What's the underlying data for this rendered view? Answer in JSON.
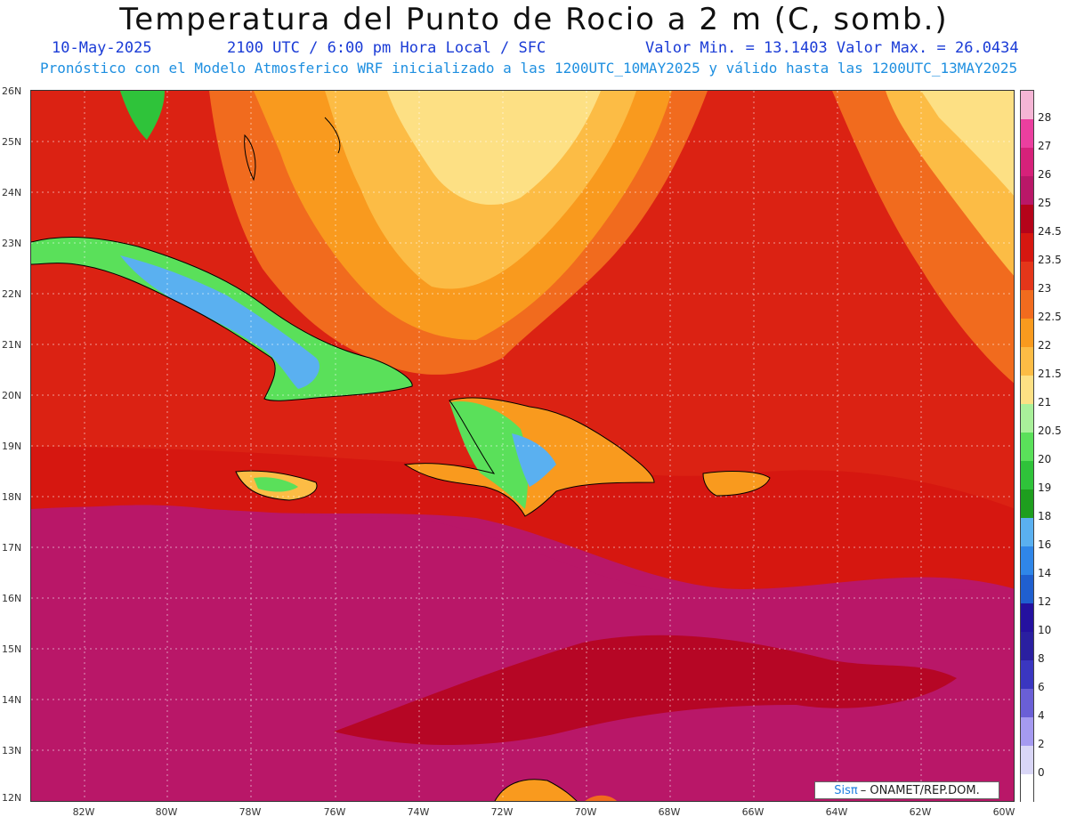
{
  "header": {
    "title": "Temperatura del Punto de Rocio a 2 m (C, somb.)",
    "date": "10-May-2025",
    "time": "2100 UTC / 6:00 pm Hora Local / SFC",
    "minmax": "Valor Min. = 13.1403  Valor Max. = 26.0434",
    "forecast": "Pronóstico con el Modelo Atmosferico WRF inicializado a las 1200UTC_10MAY2025 y válido hasta las  1200UTC_13MAY2025"
  },
  "axes": {
    "lat_labels": [
      "26N",
      "25N",
      "24N",
      "23N",
      "22N",
      "21N",
      "20N",
      "19N",
      "18N",
      "17N",
      "16N",
      "15N",
      "14N",
      "13N",
      "12N"
    ],
    "lon_labels": [
      "82W",
      "80W",
      "78W",
      "76W",
      "74W",
      "72W",
      "70W",
      "68W",
      "66W",
      "64W",
      "62W",
      "60W"
    ]
  },
  "colorbar": {
    "labels": [
      "28",
      "27",
      "26",
      "25",
      "24.5",
      "23.5",
      "23",
      "22.5",
      "22",
      "21.5",
      "21",
      "20.5",
      "20",
      "19",
      "18",
      "16",
      "14",
      "12",
      "10",
      "8",
      "6",
      "4",
      "2",
      "0"
    ],
    "colors": [
      "#f5b5d5",
      "#eb3f9f",
      "#d6217a",
      "#b91768",
      "#b5031a",
      "#d61710",
      "#e4361a",
      "#f16b1e",
      "#f99a1e",
      "#fcbc45",
      "#fde084",
      "#a9f09a",
      "#5ae05a",
      "#2fc33a",
      "#1e9e1e",
      "#5ab0f0",
      "#2f86e8",
      "#1f5fcf",
      "#24119f",
      "#2a1fa0",
      "#3a36c0",
      "#6a5fd6",
      "#a59af0",
      "#d9d6f6",
      "#ffffff"
    ]
  },
  "logo": {
    "sis": "Sisπ",
    "rest": "– ONAMET/REP.DOM."
  }
}
